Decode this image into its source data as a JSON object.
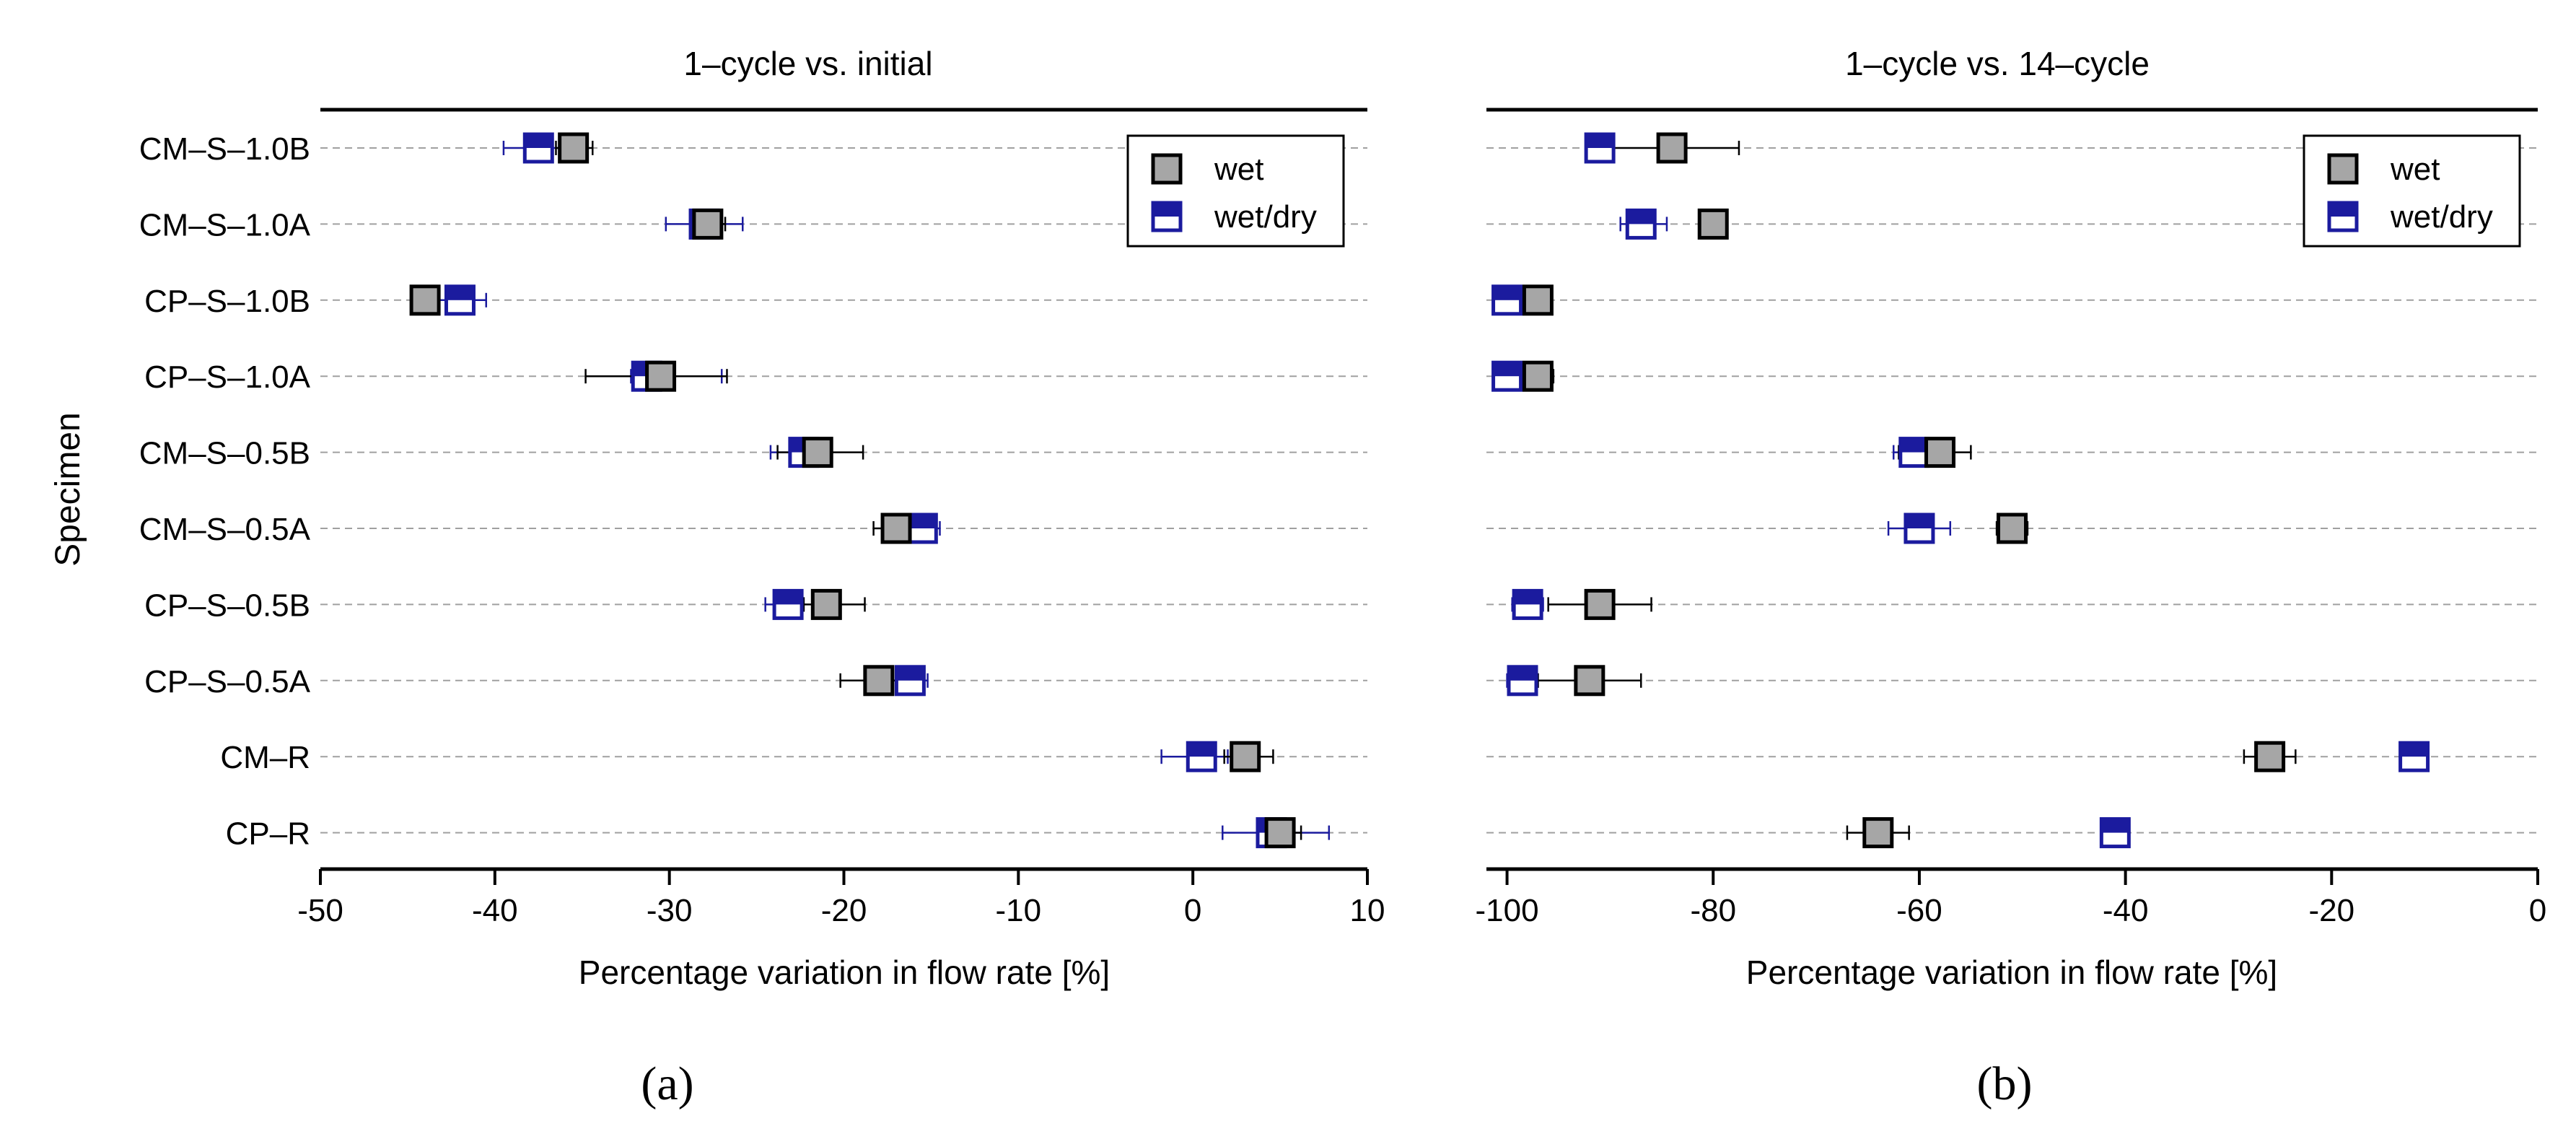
{
  "y_axis_title": "Specimen",
  "specimens": [
    "CM–S–1.0B",
    "CM–S–1.0A",
    "CP–S–1.0B",
    "CP–S–1.0A",
    "CM–S–0.5B",
    "CM–S–0.5A",
    "CP–S–0.5B",
    "CP–S–0.5A",
    "CM–R",
    "CP–R"
  ],
  "colors": {
    "wet_fill": "#a6a6a6",
    "wet_edge": "#000000",
    "wetdry_edge": "#1b1b9e",
    "gridline": "#a0a0a0"
  },
  "chart_data": [
    {
      "type": "scatter",
      "panel_label": "(a)",
      "title": "1–cycle vs. initial",
      "xlabel": "Percentage variation in flow rate [%]",
      "ylabel": "Specimen",
      "xlim": [
        -50,
        10
      ],
      "xticks": [
        -50,
        -40,
        -30,
        -20,
        -10,
        0,
        10
      ],
      "xtick_labels": [
        "-50",
        "-40",
        "-30",
        "-20",
        "-10",
        "0",
        "10"
      ],
      "grid": "horizontal dashed",
      "legend_position": "top-right",
      "categories": [
        "CM–S–1.0B",
        "CM–S–1.0A",
        "CP–S–1.0B",
        "CP–S–1.0A",
        "CM–S–0.5B",
        "CM–S–0.5A",
        "CP–S–0.5B",
        "CP–S–0.5A",
        "CM–R",
        "CP–R"
      ],
      "series": [
        {
          "name": "wet",
          "marker": "filled-square",
          "values": [
            -35.5,
            -27.8,
            -44,
            -30.5,
            -21.5,
            -17,
            -21,
            -18,
            3,
            5
          ],
          "err_low": [
            -36.5,
            -28.7,
            -44.8,
            -34.8,
            -23.8,
            -18.3,
            -22.3,
            -20.2,
            1.8,
            3.8
          ],
          "err_high": [
            -34.4,
            -26.8,
            -43.2,
            -26.7,
            -18.9,
            -15.8,
            -18.8,
            -16.2,
            4.6,
            6.2
          ]
        },
        {
          "name": "wet/dry",
          "marker": "half-filled-square",
          "values": [
            -37.5,
            -28,
            -42,
            -31.3,
            -22.3,
            -15.5,
            -23.2,
            -16.2,
            0.5,
            4.5
          ],
          "err_low": [
            -39.5,
            -30.2,
            -43.5,
            -32.2,
            -24.2,
            -16.5,
            -24.5,
            -17.3,
            -1.8,
            1.7
          ],
          "err_high": [
            -35.5,
            -25.8,
            -40.5,
            -27,
            -20.8,
            -14.5,
            -22.3,
            -15.2,
            2,
            7.8
          ]
        }
      ]
    },
    {
      "type": "scatter",
      "panel_label": "(b)",
      "title": "1–cycle vs. 14–cycle",
      "xlabel": "Percentage variation in flow rate [%]",
      "xlim": [
        -102,
        0
      ],
      "xticks": [
        -100,
        -80,
        -60,
        -40,
        -20,
        0
      ],
      "xtick_labels": [
        "-100",
        "-80",
        "-60",
        "-40",
        "-20",
        "0"
      ],
      "grid": "horizontal dashed",
      "legend_position": "top-right",
      "categories": [
        "CM–S–1.0B",
        "CM–S–1.0A",
        "CP–S–1.0B",
        "CP–S–1.0A",
        "CM–S–0.5B",
        "CM–S–0.5A",
        "CP–S–0.5B",
        "CP–S–0.5A",
        "CM–R",
        "CP–R"
      ],
      "series": [
        {
          "name": "wet",
          "marker": "filled-square",
          "values": [
            -84,
            -80,
            -97,
            -97,
            -58,
            -51,
            -91,
            -92,
            -26,
            -64
          ],
          "err_low": [
            -90,
            -81.2,
            -98,
            -98,
            -62,
            -52.5,
            -96,
            -97,
            -28.5,
            -67
          ],
          "err_high": [
            -77.5,
            -78.8,
            -96,
            -95.5,
            -55,
            -49.5,
            -86,
            -87,
            -23.5,
            -61
          ]
        },
        {
          "name": "wet/dry",
          "marker": "half-filled-square",
          "values": [
            -91,
            -87,
            -100,
            -100,
            -60.5,
            -60,
            -98,
            -98.5,
            -12,
            -41
          ],
          "err_low": [
            -92,
            -89,
            -101,
            -101,
            -62.5,
            -63,
            -99.5,
            -100,
            -13,
            -42
          ],
          "err_high": [
            -90,
            -84.5,
            -99,
            -99,
            -58.5,
            -57,
            -96.5,
            -97,
            -11,
            -40
          ]
        }
      ]
    }
  ]
}
